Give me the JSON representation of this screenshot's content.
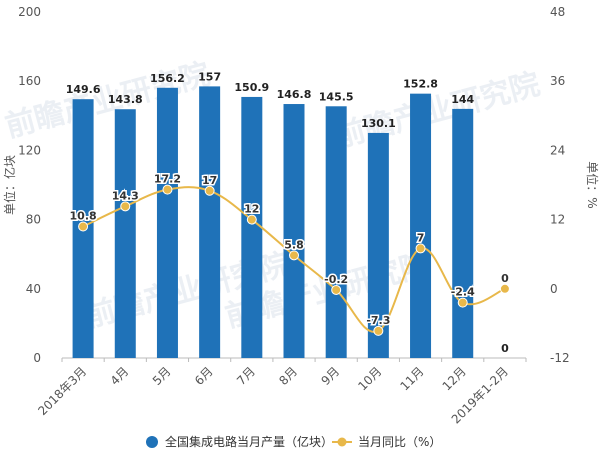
{
  "chart_data": {
    "type": "bar",
    "categories": [
      "2018年3月",
      "4月",
      "5月",
      "6月",
      "7月",
      "8月",
      "9月",
      "10月",
      "11月",
      "12月",
      "2019年1-2月"
    ],
    "series": [
      {
        "name": "全国集成电路当月产量（亿块）",
        "type": "bar",
        "axis": "left",
        "color": "#1f72b8",
        "values": [
          149.6,
          143.8,
          156.2,
          157,
          150.9,
          146.8,
          145.5,
          130.1,
          152.8,
          144,
          0
        ],
        "labels": [
          "149.6",
          "143.8",
          "156.2",
          "157",
          "150.9",
          "146.8",
          "145.5",
          "130.1",
          "152.8",
          "144",
          "0"
        ]
      },
      {
        "name": "当月同比（%）",
        "type": "line",
        "axis": "right",
        "color": "#e8b84a",
        "values": [
          10.8,
          14.3,
          17.2,
          17,
          12,
          5.8,
          -0.2,
          -7.3,
          7,
          -2.4,
          0
        ],
        "labels": [
          "10.8",
          "14.3",
          "17.2",
          "17",
          "12",
          "5.8",
          "-0.2",
          "-7.3",
          "7",
          "-2.4",
          "0"
        ]
      }
    ],
    "left_axis": {
      "label": "单位：亿块",
      "ylim": [
        0,
        200
      ],
      "ticks": [
        "0",
        "40",
        "80",
        "120",
        "160",
        "200"
      ]
    },
    "right_axis": {
      "label": "单位：%",
      "ylim": [
        -12,
        48
      ],
      "ticks": [
        "-12",
        "0",
        "12",
        "24",
        "36",
        "48"
      ]
    },
    "grid": false,
    "legend_position": "bottom",
    "watermark": "前瞻产业研究院"
  }
}
